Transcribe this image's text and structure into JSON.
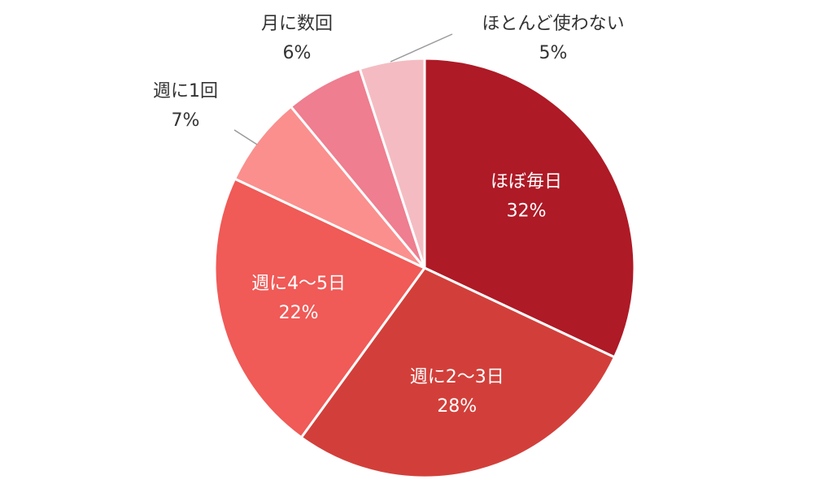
{
  "chart_data": {
    "type": "pie",
    "slices": [
      {
        "label": "ほぼ毎日",
        "value": 32,
        "value_label": "32%",
        "color": "#ae1a26",
        "label_position": "inside"
      },
      {
        "label": "週に2～3日",
        "value": 28,
        "value_label": "28%",
        "color": "#d23f3a",
        "label_position": "inside"
      },
      {
        "label": "週に4～5日",
        "value": 22,
        "value_label": "22%",
        "color": "#f05a57",
        "label_position": "inside"
      },
      {
        "label": "週に1回",
        "value": 7,
        "value_label": "7%",
        "color": "#fa8f8e",
        "label_position": "outside"
      },
      {
        "label": "月に数回",
        "value": 6,
        "value_label": "6%",
        "color": "#ee7e90",
        "label_position": "outside"
      },
      {
        "label": "ほとんど使わない",
        "value": 5,
        "value_label": "5%",
        "color": "#f4bcc2",
        "label_position": "outside"
      }
    ],
    "start_angle": "12 o'clock",
    "direction": "clockwise",
    "legend": "none"
  }
}
